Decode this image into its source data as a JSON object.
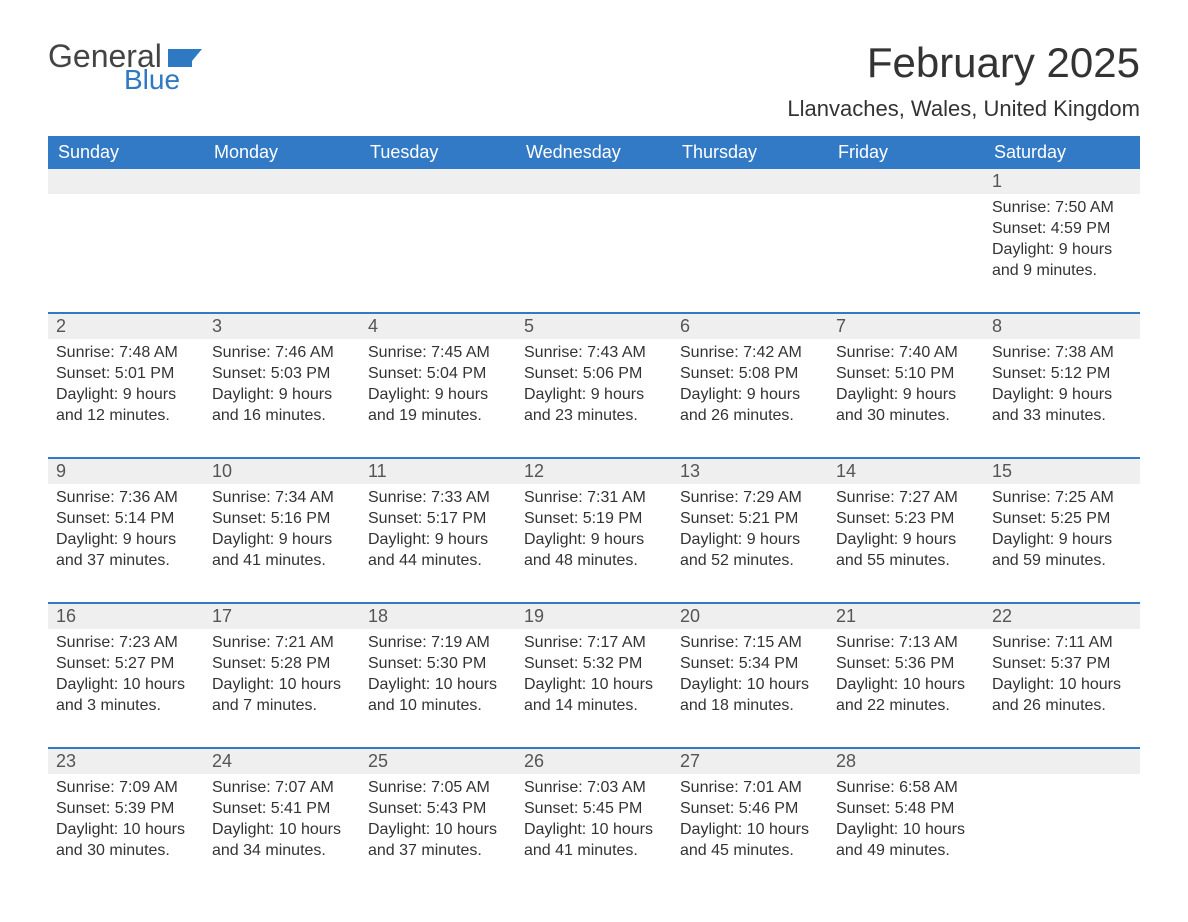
{
  "logo": {
    "text1": "General",
    "text2": "Blue",
    "flag_color": "#2f78c2"
  },
  "header": {
    "month_title": "February 2025",
    "location": "Llanvaches, Wales, United Kingdom"
  },
  "colors": {
    "header_bg": "#3279c6",
    "header_text": "#ffffff",
    "daynum_bg": "#efefef",
    "week_divider": "#3279c6",
    "body_text": "#333333"
  },
  "weekdays": [
    "Sunday",
    "Monday",
    "Tuesday",
    "Wednesday",
    "Thursday",
    "Friday",
    "Saturday"
  ],
  "weeks": [
    [
      null,
      null,
      null,
      null,
      null,
      null,
      {
        "n": "1",
        "sunrise": "Sunrise: 7:50 AM",
        "sunset": "Sunset: 4:59 PM",
        "day1": "Daylight: 9 hours",
        "day2": "and 9 minutes."
      }
    ],
    [
      {
        "n": "2",
        "sunrise": "Sunrise: 7:48 AM",
        "sunset": "Sunset: 5:01 PM",
        "day1": "Daylight: 9 hours",
        "day2": "and 12 minutes."
      },
      {
        "n": "3",
        "sunrise": "Sunrise: 7:46 AM",
        "sunset": "Sunset: 5:03 PM",
        "day1": "Daylight: 9 hours",
        "day2": "and 16 minutes."
      },
      {
        "n": "4",
        "sunrise": "Sunrise: 7:45 AM",
        "sunset": "Sunset: 5:04 PM",
        "day1": "Daylight: 9 hours",
        "day2": "and 19 minutes."
      },
      {
        "n": "5",
        "sunrise": "Sunrise: 7:43 AM",
        "sunset": "Sunset: 5:06 PM",
        "day1": "Daylight: 9 hours",
        "day2": "and 23 minutes."
      },
      {
        "n": "6",
        "sunrise": "Sunrise: 7:42 AM",
        "sunset": "Sunset: 5:08 PM",
        "day1": "Daylight: 9 hours",
        "day2": "and 26 minutes."
      },
      {
        "n": "7",
        "sunrise": "Sunrise: 7:40 AM",
        "sunset": "Sunset: 5:10 PM",
        "day1": "Daylight: 9 hours",
        "day2": "and 30 minutes."
      },
      {
        "n": "8",
        "sunrise": "Sunrise: 7:38 AM",
        "sunset": "Sunset: 5:12 PM",
        "day1": "Daylight: 9 hours",
        "day2": "and 33 minutes."
      }
    ],
    [
      {
        "n": "9",
        "sunrise": "Sunrise: 7:36 AM",
        "sunset": "Sunset: 5:14 PM",
        "day1": "Daylight: 9 hours",
        "day2": "and 37 minutes."
      },
      {
        "n": "10",
        "sunrise": "Sunrise: 7:34 AM",
        "sunset": "Sunset: 5:16 PM",
        "day1": "Daylight: 9 hours",
        "day2": "and 41 minutes."
      },
      {
        "n": "11",
        "sunrise": "Sunrise: 7:33 AM",
        "sunset": "Sunset: 5:17 PM",
        "day1": "Daylight: 9 hours",
        "day2": "and 44 minutes."
      },
      {
        "n": "12",
        "sunrise": "Sunrise: 7:31 AM",
        "sunset": "Sunset: 5:19 PM",
        "day1": "Daylight: 9 hours",
        "day2": "and 48 minutes."
      },
      {
        "n": "13",
        "sunrise": "Sunrise: 7:29 AM",
        "sunset": "Sunset: 5:21 PM",
        "day1": "Daylight: 9 hours",
        "day2": "and 52 minutes."
      },
      {
        "n": "14",
        "sunrise": "Sunrise: 7:27 AM",
        "sunset": "Sunset: 5:23 PM",
        "day1": "Daylight: 9 hours",
        "day2": "and 55 minutes."
      },
      {
        "n": "15",
        "sunrise": "Sunrise: 7:25 AM",
        "sunset": "Sunset: 5:25 PM",
        "day1": "Daylight: 9 hours",
        "day2": "and 59 minutes."
      }
    ],
    [
      {
        "n": "16",
        "sunrise": "Sunrise: 7:23 AM",
        "sunset": "Sunset: 5:27 PM",
        "day1": "Daylight: 10 hours",
        "day2": "and 3 minutes."
      },
      {
        "n": "17",
        "sunrise": "Sunrise: 7:21 AM",
        "sunset": "Sunset: 5:28 PM",
        "day1": "Daylight: 10 hours",
        "day2": "and 7 minutes."
      },
      {
        "n": "18",
        "sunrise": "Sunrise: 7:19 AM",
        "sunset": "Sunset: 5:30 PM",
        "day1": "Daylight: 10 hours",
        "day2": "and 10 minutes."
      },
      {
        "n": "19",
        "sunrise": "Sunrise: 7:17 AM",
        "sunset": "Sunset: 5:32 PM",
        "day1": "Daylight: 10 hours",
        "day2": "and 14 minutes."
      },
      {
        "n": "20",
        "sunrise": "Sunrise: 7:15 AM",
        "sunset": "Sunset: 5:34 PM",
        "day1": "Daylight: 10 hours",
        "day2": "and 18 minutes."
      },
      {
        "n": "21",
        "sunrise": "Sunrise: 7:13 AM",
        "sunset": "Sunset: 5:36 PM",
        "day1": "Daylight: 10 hours",
        "day2": "and 22 minutes."
      },
      {
        "n": "22",
        "sunrise": "Sunrise: 7:11 AM",
        "sunset": "Sunset: 5:37 PM",
        "day1": "Daylight: 10 hours",
        "day2": "and 26 minutes."
      }
    ],
    [
      {
        "n": "23",
        "sunrise": "Sunrise: 7:09 AM",
        "sunset": "Sunset: 5:39 PM",
        "day1": "Daylight: 10 hours",
        "day2": "and 30 minutes."
      },
      {
        "n": "24",
        "sunrise": "Sunrise: 7:07 AM",
        "sunset": "Sunset: 5:41 PM",
        "day1": "Daylight: 10 hours",
        "day2": "and 34 minutes."
      },
      {
        "n": "25",
        "sunrise": "Sunrise: 7:05 AM",
        "sunset": "Sunset: 5:43 PM",
        "day1": "Daylight: 10 hours",
        "day2": "and 37 minutes."
      },
      {
        "n": "26",
        "sunrise": "Sunrise: 7:03 AM",
        "sunset": "Sunset: 5:45 PM",
        "day1": "Daylight: 10 hours",
        "day2": "and 41 minutes."
      },
      {
        "n": "27",
        "sunrise": "Sunrise: 7:01 AM",
        "sunset": "Sunset: 5:46 PM",
        "day1": "Daylight: 10 hours",
        "day2": "and 45 minutes."
      },
      {
        "n": "28",
        "sunrise": "Sunrise: 6:58 AM",
        "sunset": "Sunset: 5:48 PM",
        "day1": "Daylight: 10 hours",
        "day2": "and 49 minutes."
      },
      null
    ]
  ]
}
